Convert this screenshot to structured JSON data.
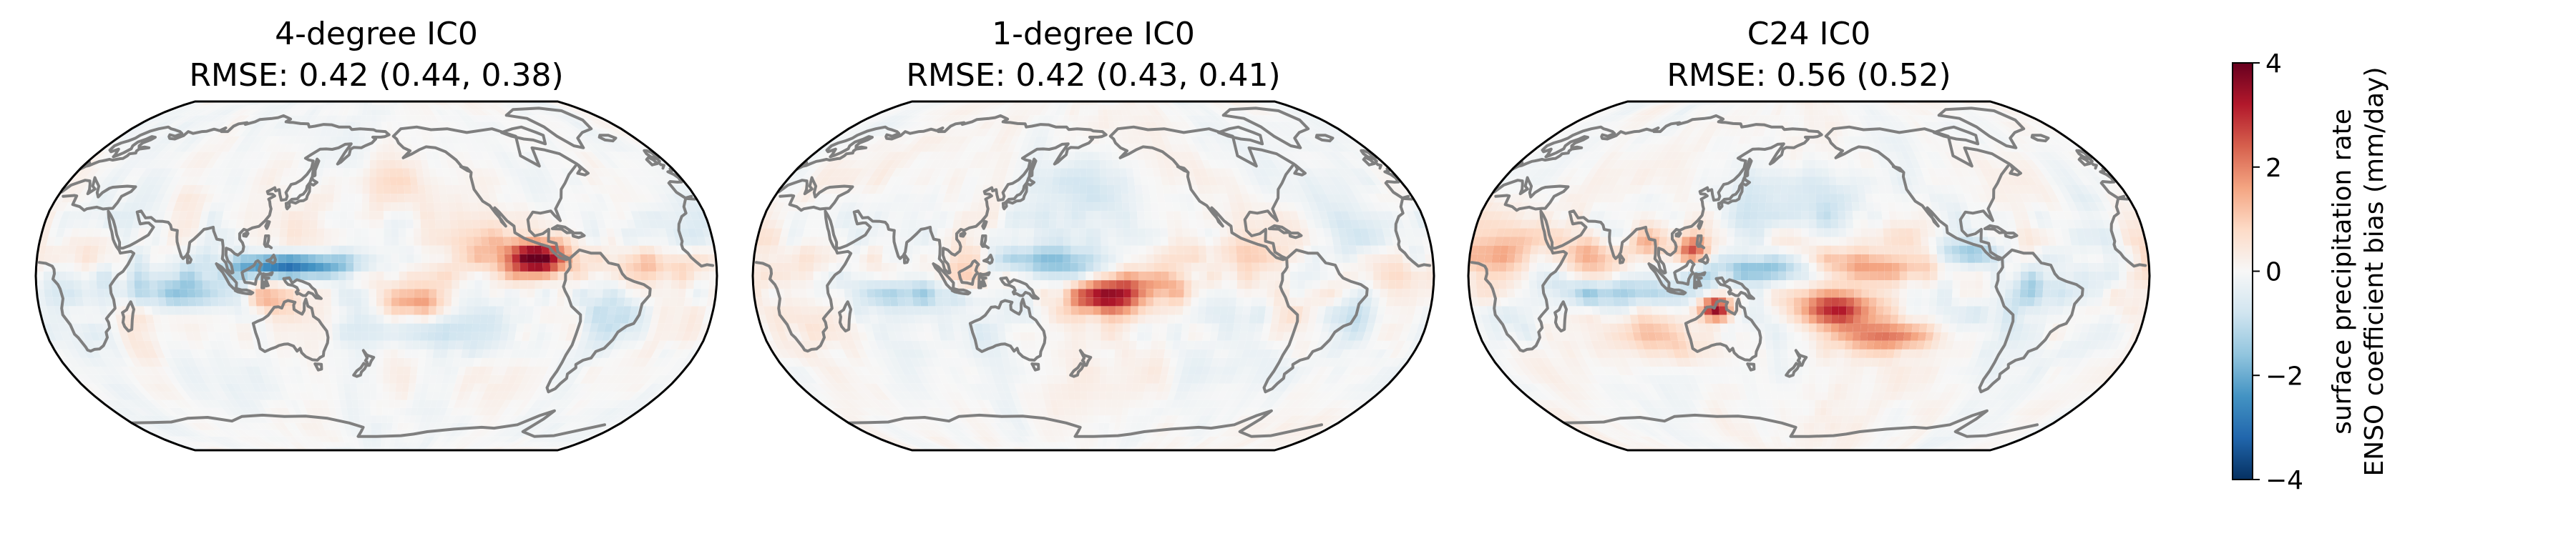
{
  "panels": [
    {
      "title_line1": "4-degree IC0",
      "title_line2": "RMSE: 0.42 (0.44, 0.38)",
      "features": [
        {
          "name": "maritime-continent-cold",
          "lon": 125,
          "lat": 5,
          "value": -2.2,
          "rlon": 18,
          "rlat": 4
        },
        {
          "name": "west-pacific-cold",
          "lon": 150,
          "lat": 5,
          "value": -1.6,
          "rlon": 20,
          "rlat": 4
        },
        {
          "name": "east-pacific-warm",
          "lon": 265,
          "lat": 8,
          "value": 3.5,
          "rlon": 10,
          "rlat": 5
        },
        {
          "name": "east-pacific-warm-halo",
          "lon": 255,
          "lat": 8,
          "value": 1.6,
          "rlon": 22,
          "rlat": 8
        },
        {
          "name": "spcz-warm",
          "lon": 200,
          "lat": -12,
          "value": 1.8,
          "rlon": 12,
          "rlat": 5
        },
        {
          "name": "maritime-warm",
          "lon": 122,
          "lat": -10,
          "value": 1.6,
          "rlon": 8,
          "rlat": 5
        },
        {
          "name": "indian-ocean-cold",
          "lon": 80,
          "lat": -8,
          "value": -1.2,
          "rlon": 20,
          "rlat": 6
        },
        {
          "name": "south-america-cold",
          "lon": 300,
          "lat": -15,
          "value": -0.9,
          "rlon": 12,
          "rlat": 12
        },
        {
          "name": "south-pacific-cold",
          "lon": 230,
          "lat": -25,
          "value": -0.8,
          "rlon": 20,
          "rlat": 8
        },
        {
          "name": "africa-warm",
          "lon": 25,
          "lat": 10,
          "value": 0.8,
          "rlon": 15,
          "rlat": 8
        },
        {
          "name": "north-pacific-warm",
          "lon": 190,
          "lat": 40,
          "value": 0.6,
          "rlon": 25,
          "rlat": 10
        },
        {
          "name": "atlantic-warm",
          "lon": 330,
          "lat": 5,
          "value": 0.9,
          "rlon": 15,
          "rlat": 5
        }
      ]
    },
    {
      "title_line1": "1-degree IC0",
      "title_line2": "RMSE: 0.42 (0.43, 0.41)",
      "features": [
        {
          "name": "indian-ocean-cold",
          "lon": 85,
          "lat": -8,
          "value": -1.5,
          "rlon": 25,
          "rlat": 5
        },
        {
          "name": "west-pacific-cold",
          "lon": 160,
          "lat": 6,
          "value": -1.4,
          "rlon": 30,
          "rlat": 5
        },
        {
          "name": "spcz-warm",
          "lon": 185,
          "lat": -10,
          "value": 2.8,
          "rlon": 12,
          "rlat": 5
        },
        {
          "name": "central-pacific-warm",
          "lon": 210,
          "lat": -5,
          "value": 1.3,
          "rlon": 25,
          "rlat": 6
        },
        {
          "name": "maritime-warm",
          "lon": 115,
          "lat": 0,
          "value": 0.9,
          "rlon": 10,
          "rlat": 8
        },
        {
          "name": "south-america-cold",
          "lon": 320,
          "lat": -20,
          "value": -1.2,
          "rlon": 10,
          "rlat": 10
        },
        {
          "name": "north-pacific-cold",
          "lon": 180,
          "lat": 40,
          "value": -0.6,
          "rlon": 25,
          "rlat": 10
        },
        {
          "name": "east-pacific-warm",
          "lon": 250,
          "lat": 10,
          "value": 0.9,
          "rlon": 15,
          "rlat": 6
        },
        {
          "name": "africa-warm",
          "lon": 30,
          "lat": 5,
          "value": 0.7,
          "rlon": 15,
          "rlat": 10
        },
        {
          "name": "atlantic-cold",
          "lon": 330,
          "lat": 15,
          "value": -0.6,
          "rlon": 15,
          "rlat": 8
        }
      ]
    },
    {
      "title_line1": "C24 IC0",
      "title_line2": "RMSE: 0.56 (0.52)",
      "features": [
        {
          "name": "west-pacific-cold",
          "lon": 160,
          "lat": 3,
          "value": -2.6,
          "rlon": 22,
          "rlat": 5
        },
        {
          "name": "central-pacific-warm",
          "lon": 210,
          "lat": 5,
          "value": 1.6,
          "rlon": 35,
          "rlat": 5
        },
        {
          "name": "australia-warm",
          "lon": 130,
          "lat": -15,
          "value": 4.0,
          "rlon": 6,
          "rlat": 4
        },
        {
          "name": "spcz-warm",
          "lon": 195,
          "lat": -15,
          "value": 2.6,
          "rlon": 15,
          "rlat": 6
        },
        {
          "name": "spcz-tail-warm",
          "lon": 225,
          "lat": -28,
          "value": 1.8,
          "rlon": 20,
          "rlat": 5
        },
        {
          "name": "bay-of-bengal-warm",
          "lon": 95,
          "lat": 15,
          "value": 1.8,
          "rlon": 8,
          "rlat": 6
        },
        {
          "name": "philippines-warm",
          "lon": 118,
          "lat": 12,
          "value": 2.5,
          "rlon": 6,
          "rlat": 5
        },
        {
          "name": "indian-ocean-cold",
          "lon": 75,
          "lat": -8,
          "value": -1.8,
          "rlon": 20,
          "rlat": 5
        },
        {
          "name": "arabian-warm",
          "lon": 60,
          "lat": 10,
          "value": 1.5,
          "rlon": 10,
          "rlat": 6
        },
        {
          "name": "africa-warm",
          "lon": 15,
          "lat": 10,
          "value": 1.0,
          "rlon": 15,
          "rlat": 8
        },
        {
          "name": "amazon-cold",
          "lon": 300,
          "lat": -5,
          "value": -1.6,
          "rlon": 12,
          "rlat": 8
        },
        {
          "name": "east-pacific-cold",
          "lon": 265,
          "lat": 10,
          "value": -1.5,
          "rlon": 12,
          "rlat": 5
        },
        {
          "name": "north-pacific-cold",
          "lon": 175,
          "lat": 35,
          "value": -0.9,
          "rlon": 30,
          "rlat": 10
        },
        {
          "name": "south-indian-warm",
          "lon": 100,
          "lat": -30,
          "value": 0.9,
          "rlon": 25,
          "rlat": 8
        },
        {
          "name": "south-atlantic-cold",
          "lon": 340,
          "lat": -25,
          "value": -0.8,
          "rlon": 15,
          "rlat": 8
        }
      ]
    }
  ],
  "colorbar": {
    "min": -4,
    "max": 4,
    "ticks": [
      {
        "value": 4,
        "label": "4"
      },
      {
        "value": 2,
        "label": "2"
      },
      {
        "value": 0,
        "label": "0"
      },
      {
        "value": -2,
        "label": "−2"
      },
      {
        "value": -4,
        "label": "−4"
      }
    ],
    "label_line1": "surface precipitation rate",
    "label_line2": "ENSO coefficient bias (mm/day)",
    "colormap": "RdBu_r",
    "colors": [
      "#053061",
      "#2166ac",
      "#4393c3",
      "#92c5de",
      "#d1e5f0",
      "#f7f7f7",
      "#fddbc7",
      "#f4a582",
      "#d6604d",
      "#b2182b",
      "#67001f"
    ]
  },
  "map": {
    "projection": "robinson",
    "central_longitude": 180,
    "coastline_color": "#7f7f7f",
    "grid_resolution_degrees": 4
  }
}
